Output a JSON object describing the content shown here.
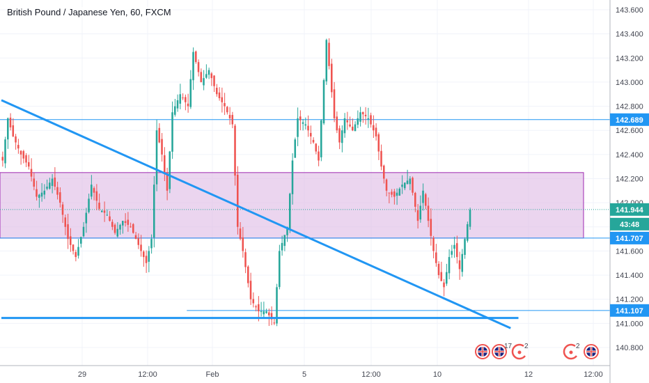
{
  "title": "British Pound / Japanese Yen, 60, FXCM",
  "chart_data": {
    "type": "candlestick",
    "ylim": [
      140.72,
      143.7
    ],
    "price_ticks": [
      143.6,
      143.4,
      143.2,
      143.0,
      142.8,
      142.6,
      142.4,
      142.2,
      142.0,
      141.8,
      141.6,
      141.4,
      141.2,
      141.0,
      140.8
    ],
    "price_tick_labels": [
      "143.600",
      "143.400",
      "143.200",
      "143.000",
      "142.800",
      "142.600",
      "142.400",
      "142.200",
      "142.000",
      "141.800",
      "141.600",
      "141.400",
      "141.200",
      "141.000",
      "140.800"
    ],
    "time_labels": [
      "29",
      "12:00",
      "Feb",
      "5",
      "12:00",
      "10",
      "12",
      "12:00"
    ],
    "horizontal_levels": [
      {
        "label": "142.689",
        "value": 142.689,
        "color": "#2196f3"
      },
      {
        "label": "141.707",
        "value": 141.707,
        "color": "#2196f3"
      },
      {
        "label": "141.107",
        "value": 141.107,
        "color": "#2196f3"
      }
    ],
    "current_price": {
      "label": "141.944",
      "value": 141.944,
      "color": "#26a69a",
      "countdown": "43:48"
    },
    "zone": {
      "top": 142.25,
      "bottom": 141.707,
      "fill": "#e1bee7",
      "border": "#9c27b0"
    },
    "trend_lines": [
      {
        "from_bar": 0,
        "from_value": 142.85,
        "to_bar": 195,
        "to_value": 140.96,
        "color": "#2196f3"
      }
    ],
    "support_line": {
      "from_bar": 0,
      "to_bar": 198,
      "value": 141.045,
      "color": "#2196f3"
    },
    "level_line_start_bar": 71,
    "candle_up_color": "#26a69a",
    "candle_down_color": "#ef5350",
    "anchors": [
      [
        0,
        142.35
      ],
      [
        2,
        142.7
      ],
      [
        4,
        142.55
      ],
      [
        7,
        142.4
      ],
      [
        10,
        142.3
      ],
      [
        13,
        142.05
      ],
      [
        16,
        142.1
      ],
      [
        19,
        142.2
      ],
      [
        22,
        142.0
      ],
      [
        25,
        141.7
      ],
      [
        28,
        141.55
      ],
      [
        31,
        141.8
      ],
      [
        34,
        142.15
      ],
      [
        37,
        141.95
      ],
      [
        40,
        141.9
      ],
      [
        43,
        141.75
      ],
      [
        46,
        141.85
      ],
      [
        49,
        141.8
      ],
      [
        52,
        141.65
      ],
      [
        55,
        141.5
      ],
      [
        57,
        141.7
      ],
      [
        59,
        142.6
      ],
      [
        61,
        142.4
      ],
      [
        63,
        142.1
      ],
      [
        65,
        142.75
      ],
      [
        68,
        142.9
      ],
      [
        71,
        142.8
      ],
      [
        73,
        143.25
      ],
      [
        76,
        143.0
      ],
      [
        79,
        143.1
      ],
      [
        82,
        142.9
      ],
      [
        85,
        142.8
      ],
      [
        88,
        142.65
      ],
      [
        90,
        141.8
      ],
      [
        92,
        141.6
      ],
      [
        95,
        141.2
      ],
      [
        98,
        141.1
      ],
      [
        101,
        141.1
      ],
      [
        104,
        141.0
      ],
      [
        106,
        141.6
      ],
      [
        109,
        141.8
      ],
      [
        111,
        142.35
      ],
      [
        113,
        142.7
      ],
      [
        116,
        142.65
      ],
      [
        119,
        142.5
      ],
      [
        121,
        142.35
      ],
      [
        124,
        143.35
      ],
      [
        127,
        142.7
      ],
      [
        129,
        142.5
      ],
      [
        131,
        142.7
      ],
      [
        134,
        142.6
      ],
      [
        137,
        142.75
      ],
      [
        140,
        142.7
      ],
      [
        143,
        142.55
      ],
      [
        145,
        142.3
      ],
      [
        147,
        142.1
      ],
      [
        150,
        142.05
      ],
      [
        153,
        142.15
      ],
      [
        156,
        142.2
      ],
      [
        159,
        141.85
      ],
      [
        161,
        142.1
      ],
      [
        163,
        141.85
      ],
      [
        165,
        141.6
      ],
      [
        167,
        141.4
      ],
      [
        169,
        141.3
      ],
      [
        171,
        141.55
      ],
      [
        173,
        141.65
      ],
      [
        175,
        141.45
      ],
      [
        177,
        141.7
      ],
      [
        179,
        141.944
      ]
    ]
  },
  "events": [
    {
      "icon": "uk-flag-icon",
      "count": ""
    },
    {
      "icon": "uk-flag-icon",
      "count": "17"
    },
    {
      "icon": "event-marker-icon",
      "count": "2"
    },
    {
      "icon": "event-marker-icon",
      "count": "2"
    },
    {
      "icon": "uk-flag-icon",
      "count": ""
    }
  ]
}
